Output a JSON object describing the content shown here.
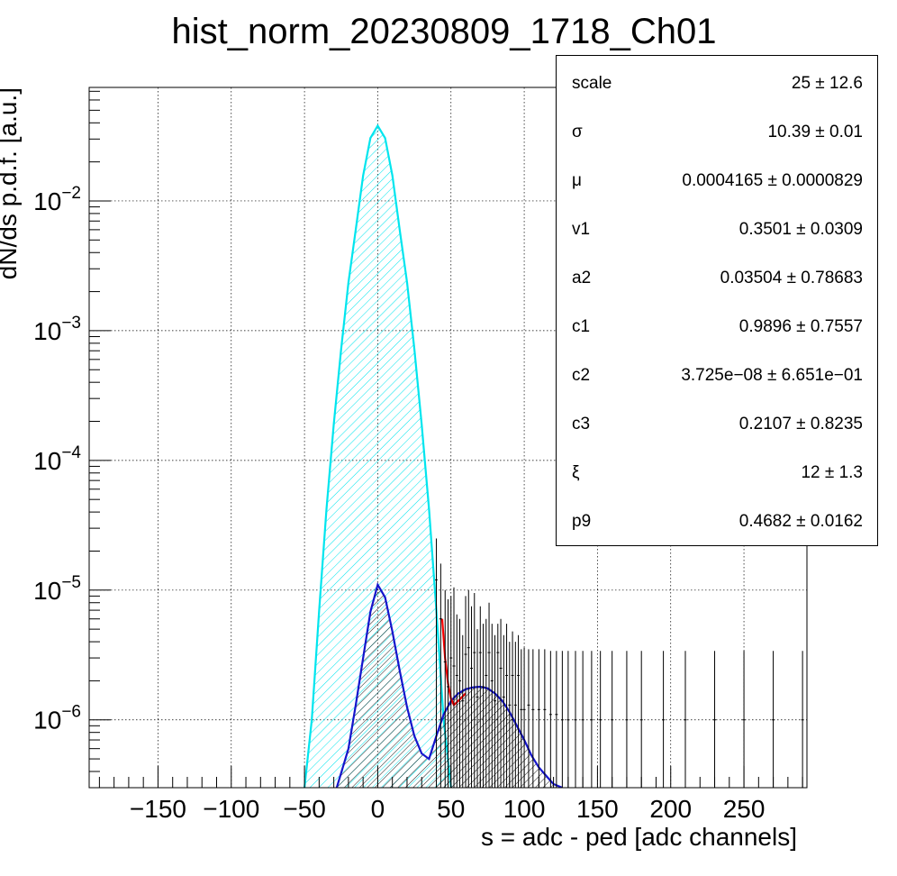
{
  "chart_data": {
    "type": "line",
    "title": "hist_norm_20230809_1718_Ch01",
    "xlabel": "s = adc - ped [adc channels]",
    "ylabel": "dN/ds p.d.f. [a.u.]",
    "xlim": [
      -197,
      293
    ],
    "ylim": [
      3e-07,
      0.075
    ],
    "y_scale": "log",
    "grid": true,
    "x_ticks": [
      -150,
      -100,
      -50,
      0,
      50,
      100,
      150,
      200,
      250
    ],
    "x_tick_labels": [
      "−150",
      "−100",
      "−50",
      "0",
      "50",
      "100",
      "150",
      "200",
      "250"
    ],
    "y_ticks": [
      {
        "value": 1e-06,
        "base": "10",
        "exp": "−6"
      },
      {
        "value": 1e-05,
        "base": "10",
        "exp": "−5"
      },
      {
        "value": 0.0001,
        "base": "10",
        "exp": "−4"
      },
      {
        "value": 0.001,
        "base": "10",
        "exp": "−3"
      },
      {
        "value": 0.01,
        "base": "10",
        "exp": "−2"
      }
    ],
    "series": [
      {
        "color": "#00e5ee",
        "style": "hatched-fill",
        "x": [
          -50,
          -45,
          -40,
          -35,
          -30,
          -25,
          -20,
          -15,
          -10,
          -5,
          0,
          5,
          10,
          15,
          20,
          25,
          30,
          35,
          40,
          45,
          50
        ],
        "y": [
          3e-07,
          1e-06,
          7e-06,
          4.2e-05,
          0.00019,
          0.00072,
          0.00235,
          0.006,
          0.0157,
          0.0305,
          0.038,
          0.0305,
          0.0157,
          0.006,
          0.00235,
          0.00072,
          0.00019,
          4.2e-05,
          7e-06,
          1e-06,
          3e-07
        ]
      },
      {
        "color": "#1515cc",
        "style": "hatched-fill",
        "x": [
          -28,
          -20,
          -15,
          -10,
          -5,
          0,
          5,
          10,
          15,
          20,
          25,
          30,
          35,
          40,
          45,
          50,
          55,
          60,
          65,
          70,
          75,
          80,
          85,
          90,
          95,
          100,
          105,
          110,
          115,
          120,
          126
        ],
        "y": [
          3e-07,
          6e-07,
          1.3e-06,
          3e-06,
          6.8e-06,
          1.1e-05,
          8.8e-06,
          4.8e-06,
          2.4e-06,
          1.25e-06,
          7.5e-07,
          5.5e-07,
          5e-07,
          7.5e-07,
          1.1e-06,
          1.4e-06,
          1.6e-06,
          1.72e-06,
          1.78e-06,
          1.8e-06,
          1.75e-06,
          1.6e-06,
          1.4e-06,
          1.15e-06,
          9e-07,
          7e-07,
          5.3e-07,
          4.3e-07,
          3.7e-07,
          3.2e-07,
          3e-07
        ]
      },
      {
        "color": "#ff0000",
        "style": "line",
        "x": [
          44,
          46,
          48,
          50,
          52,
          55,
          60
        ],
        "y": [
          6e-06,
          3e-06,
          1.9e-06,
          1.45e-06,
          1.3e-06,
          1.4e-06,
          1.6e-06
        ]
      }
    ],
    "data_histogram": {
      "color": "#000000",
      "x": [
        40,
        43,
        46,
        48,
        50,
        52,
        54,
        56,
        58,
        60,
        62,
        64,
        66,
        68,
        70,
        72,
        74,
        76,
        78,
        80,
        82,
        84,
        86,
        88,
        90,
        92,
        94,
        96,
        98,
        100,
        103,
        106,
        110,
        114,
        118,
        122,
        126,
        130,
        135,
        140,
        146,
        152,
        160,
        170,
        180,
        195,
        210,
        230,
        250,
        270,
        290
      ],
      "y": [
        1.2e-05,
        6e-06,
        2.8e-06,
        1.8e-06,
        3e-06,
        2.6e-06,
        2.2e-06,
        2e-06,
        1.4e-06,
        3.2e-06,
        3.6e-06,
        2.5e-06,
        3.3e-06,
        1.5e-06,
        3.3e-06,
        1.8e-06,
        2.2e-06,
        3.3e-06,
        2e-06,
        1.4e-06,
        3.3e-06,
        2.5e-06,
        1.5e-06,
        2.2e-06,
        1.3e-06,
        2.2e-06,
        1.3e-06,
        2.2e-06,
        1.2e-06,
        1.2e-06,
        1.3e-06,
        1.2e-06,
        1.2e-06,
        1.2e-06,
        1.1e-06,
        1.1e-06,
        1e-06,
        1e-06,
        1e-06,
        1e-06,
        1e-06,
        1e-06,
        1e-06,
        1e-06,
        1e-06,
        1e-06,
        1e-06,
        1e-06,
        1e-06,
        1e-06,
        1e-06
      ],
      "err_hi": [
        2.5e-05,
        1.6e-05,
        1e-05,
        8.5e-06,
        9e-06,
        1.05e-05,
        6.5e-06,
        6e-06,
        4.5e-06,
        9e-06,
        1e-05,
        7.5e-06,
        9.5e-06,
        5e-06,
        7.5e-06,
        5.5e-06,
        6e-06,
        8e-06,
        5.5e-06,
        4.5e-06,
        5.5e-06,
        6e-06,
        4.5e-06,
        5.5e-06,
        4e-06,
        4.8e-06,
        4e-06,
        4.5e-06,
        3.5e-06,
        3.6e-06,
        3.5e-06,
        3.5e-06,
        3.5e-06,
        3.5e-06,
        3.4e-06,
        3.4e-06,
        3.4e-06,
        3.4e-06,
        3.4e-06,
        3.4e-06,
        3.4e-06,
        3.4e-06,
        3.4e-06,
        3.4e-06,
        3.4e-06,
        3.4e-06,
        3.4e-06,
        3.4e-06,
        3.4e-06,
        3.4e-06,
        3.4e-06
      ]
    }
  },
  "stats": {
    "rows": [
      {
        "name": "scale",
        "value": "25 ± 12.6"
      },
      {
        "name": "σ",
        "value": "10.39 ± 0.01"
      },
      {
        "name": "μ",
        "value": "0.0004165 ± 0.0000829"
      },
      {
        "name": "v1",
        "value": "0.3501 ± 0.0309"
      },
      {
        "name": "a2",
        "value": "0.03504 ± 0.78683"
      },
      {
        "name": "c1",
        "value": "0.9896 ± 0.7557"
      },
      {
        "name": "c2",
        "value": "3.725e−08 ± 6.651e−01"
      },
      {
        "name": "c3",
        "value": "0.2107 ± 0.8235"
      },
      {
        "name": "ξ",
        "value": "12 ± 1.3"
      },
      {
        "name": "p9",
        "value": "0.4682 ± 0.0162"
      }
    ]
  }
}
